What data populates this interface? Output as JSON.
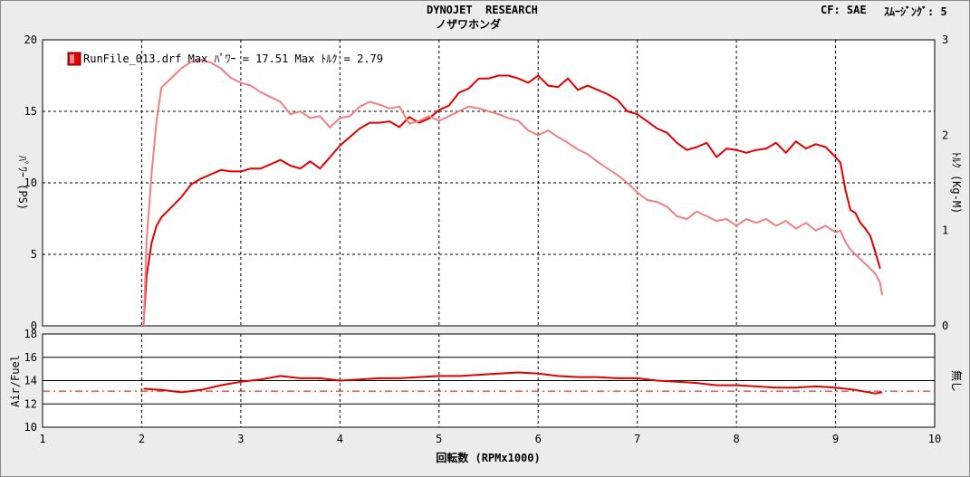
{
  "header": {
    "title": "DYNOJET  RESEARCH",
    "subtitle": "ノザワホンダ",
    "cf": "CF: SAE",
    "smoothing": "ｽﾑｰｼﾞﾝｸﾞ: 5"
  },
  "chart_data": [
    {
      "type": "line",
      "ylabel": "ﾊﾟﾜｰ (PS)",
      "y2label": "ﾄﾙｸ (Kg-M)",
      "xlim": [
        1,
        10
      ],
      "ylim": [
        0,
        20
      ],
      "y2lim": [
        0,
        3
      ],
      "yticks": [
        "0",
        "5",
        "10",
        "15",
        "20"
      ],
      "y2ticks": [
        "0",
        "1",
        "2",
        "3"
      ],
      "grid": true,
      "legend": {
        "position": "top-left",
        "text": "RunFile_013.drf Max ﾊﾟﾜｰ = 17.51  Max ﾄﾙｸ = 2.79"
      },
      "series": [
        {
          "key": "power",
          "axis": "left",
          "color": "#e00000",
          "x": [
            2.02,
            2.05,
            2.1,
            2.15,
            2.2,
            2.3,
            2.4,
            2.5,
            2.6,
            2.7,
            2.8,
            2.9,
            3.0,
            3.1,
            3.2,
            3.3,
            3.4,
            3.5,
            3.6,
            3.7,
            3.8,
            3.9,
            4.0,
            4.1,
            4.2,
            4.3,
            4.4,
            4.5,
            4.6,
            4.7,
            4.8,
            4.9,
            5.0,
            5.1,
            5.2,
            5.3,
            5.4,
            5.5,
            5.6,
            5.7,
            5.8,
            5.9,
            6.0,
            6.1,
            6.2,
            6.3,
            6.4,
            6.5,
            6.6,
            6.7,
            6.8,
            6.9,
            7.0,
            7.1,
            7.2,
            7.3,
            7.4,
            7.5,
            7.6,
            7.7,
            7.8,
            7.9,
            8.0,
            8.1,
            8.2,
            8.3,
            8.4,
            8.5,
            8.6,
            8.7,
            8.8,
            8.9,
            9.0,
            9.05,
            9.1,
            9.15,
            9.2,
            9.25,
            9.3,
            9.35,
            9.4,
            9.45
          ],
          "y": [
            0.2,
            3.5,
            5.8,
            7.0,
            7.6,
            8.3,
            9.0,
            9.9,
            10.3,
            10.6,
            10.9,
            10.8,
            10.8,
            11.0,
            11.0,
            11.3,
            11.6,
            11.2,
            11.0,
            11.5,
            11.0,
            11.8,
            12.6,
            13.2,
            13.8,
            14.2,
            14.2,
            14.3,
            13.9,
            14.6,
            14.2,
            14.5,
            15.1,
            15.4,
            16.3,
            16.6,
            17.3,
            17.3,
            17.5,
            17.5,
            17.3,
            17.0,
            17.5,
            16.8,
            16.7,
            17.3,
            16.5,
            16.8,
            16.5,
            16.2,
            15.8,
            15.0,
            14.8,
            14.3,
            13.8,
            13.5,
            12.8,
            12.3,
            12.5,
            12.8,
            11.8,
            12.4,
            12.3,
            12.1,
            12.3,
            12.4,
            12.8,
            12.1,
            12.9,
            12.4,
            12.7,
            12.5,
            11.8,
            11.4,
            9.5,
            8.1,
            7.9,
            7.2,
            6.8,
            6.3,
            5.2,
            4.0
          ]
        },
        {
          "key": "torque",
          "axis": "right",
          "color": "#f08080",
          "x": [
            2.02,
            2.05,
            2.1,
            2.15,
            2.2,
            2.3,
            2.4,
            2.5,
            2.6,
            2.7,
            2.8,
            2.9,
            3.0,
            3.1,
            3.2,
            3.3,
            3.4,
            3.5,
            3.6,
            3.7,
            3.8,
            3.9,
            4.0,
            4.1,
            4.2,
            4.3,
            4.4,
            4.5,
            4.6,
            4.7,
            4.8,
            4.9,
            5.0,
            5.1,
            5.2,
            5.3,
            5.4,
            5.5,
            5.6,
            5.7,
            5.8,
            5.9,
            6.0,
            6.1,
            6.2,
            6.3,
            6.4,
            6.5,
            6.6,
            6.7,
            6.8,
            6.9,
            7.0,
            7.1,
            7.2,
            7.3,
            7.4,
            7.5,
            7.6,
            7.7,
            7.8,
            7.9,
            8.0,
            8.1,
            8.2,
            8.3,
            8.4,
            8.5,
            8.6,
            8.7,
            8.8,
            8.9,
            9.0,
            9.05,
            9.1,
            9.15,
            9.2,
            9.25,
            9.3,
            9.35,
            9.4,
            9.45,
            9.47
          ],
          "y": [
            0.0,
            0.9,
            1.6,
            2.15,
            2.5,
            2.6,
            2.7,
            2.77,
            2.79,
            2.76,
            2.7,
            2.6,
            2.55,
            2.52,
            2.45,
            2.4,
            2.35,
            2.22,
            2.25,
            2.18,
            2.2,
            2.08,
            2.18,
            2.2,
            2.3,
            2.35,
            2.32,
            2.28,
            2.3,
            2.12,
            2.15,
            2.2,
            2.15,
            2.2,
            2.25,
            2.3,
            2.28,
            2.25,
            2.22,
            2.18,
            2.15,
            2.05,
            2.0,
            2.05,
            1.98,
            1.92,
            1.85,
            1.8,
            1.72,
            1.65,
            1.58,
            1.5,
            1.4,
            1.32,
            1.3,
            1.25,
            1.15,
            1.12,
            1.2,
            1.15,
            1.1,
            1.12,
            1.05,
            1.12,
            1.08,
            1.12,
            1.05,
            1.1,
            1.02,
            1.08,
            1.0,
            1.05,
            0.98,
            1.0,
            0.88,
            0.8,
            0.75,
            0.7,
            0.65,
            0.6,
            0.55,
            0.45,
            0.32
          ]
        }
      ]
    },
    {
      "type": "line",
      "ylabel": "Air/Fuel",
      "y2label": "無し",
      "xlabel": "回転数 (RPMx1000)",
      "xlim": [
        1,
        10
      ],
      "ylim": [
        10,
        18
      ],
      "yticks": [
        "10",
        "12",
        "14",
        "16",
        "18"
      ],
      "xticks": [
        "1",
        "2",
        "3",
        "4",
        "5",
        "6",
        "7",
        "8",
        "9",
        "10"
      ],
      "grid": true,
      "reference_line": 13.1,
      "series": [
        {
          "key": "afr",
          "color": "#e00000",
          "x": [
            2.02,
            2.2,
            2.4,
            2.6,
            2.8,
            3.0,
            3.2,
            3.4,
            3.6,
            3.8,
            4.0,
            4.2,
            4.4,
            4.6,
            4.8,
            5.0,
            5.2,
            5.4,
            5.6,
            5.8,
            6.0,
            6.2,
            6.4,
            6.6,
            6.8,
            7.0,
            7.2,
            7.4,
            7.6,
            7.8,
            8.0,
            8.2,
            8.4,
            8.6,
            8.8,
            9.0,
            9.2,
            9.4,
            9.47
          ],
          "y": [
            13.3,
            13.2,
            13.0,
            13.2,
            13.6,
            13.9,
            14.1,
            14.4,
            14.2,
            14.2,
            14.0,
            14.1,
            14.2,
            14.2,
            14.3,
            14.4,
            14.4,
            14.5,
            14.6,
            14.7,
            14.6,
            14.4,
            14.3,
            14.3,
            14.2,
            14.2,
            14.0,
            13.9,
            13.8,
            13.6,
            13.6,
            13.5,
            13.4,
            13.4,
            13.5,
            13.4,
            13.2,
            12.9,
            13.0
          ]
        }
      ]
    }
  ]
}
